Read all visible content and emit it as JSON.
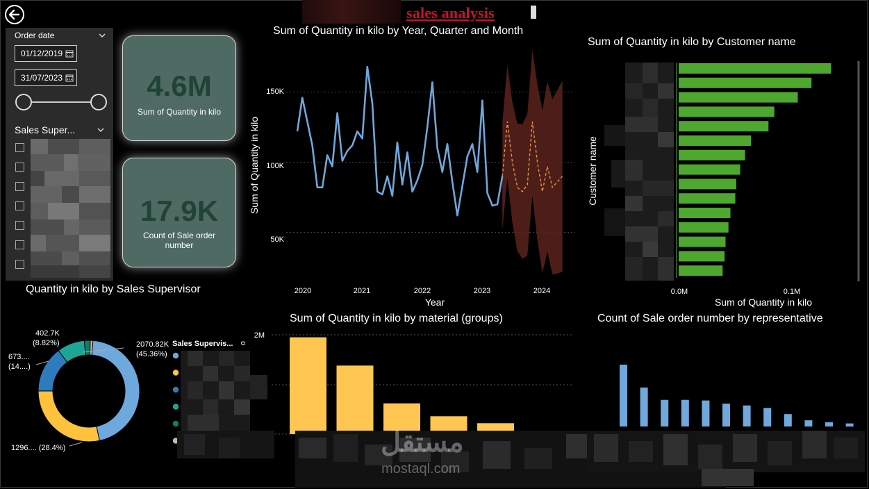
{
  "header": {
    "title": "sales analysis"
  },
  "slicer": {
    "date_label": "Order date",
    "start_date": "01/12/2019",
    "end_date": "31/07/2023",
    "supervisor_label": "Sales Super..."
  },
  "kpis": [
    {
      "value": "4.6M",
      "label": "Sum of Quantity in kilo"
    },
    {
      "value": "17.9K",
      "label": "Count of Sale order number"
    }
  ],
  "line_chart": {
    "title": "Sum of Quantity in kilo by Year, Quarter and Month",
    "xlabel": "Year",
    "ylabel": "Sum of Quantity in kilo",
    "y_ticks": [
      "150K",
      "100K",
      "50K"
    ],
    "x_ticks": [
      "2020",
      "2021",
      "2022",
      "2023",
      "2024"
    ]
  },
  "bar_chart": {
    "title": "Sum of Quantity in kilo by Customer name",
    "xlabel": "Sum of Quantity in kilo",
    "ylabel": "Customer name",
    "x_ticks": [
      "0.0M",
      "0.1M"
    ]
  },
  "donut_chart": {
    "title": "Quantity in kilo by Sales Supervisor",
    "legend_title": "Sales Supervis...",
    "labels": [
      {
        "line1": "2070.82K",
        "line2": "(45.36%)"
      },
      {
        "line1": "1296.... (28.4%)",
        "line2": ""
      },
      {
        "line1": "673....",
        "line2": "(14....)"
      },
      {
        "line1": "402.7K",
        "line2": "(8.82%)"
      }
    ],
    "colors": [
      "#6fa8dc",
      "#ffc23d",
      "#2f7bbf",
      "#1fa596",
      "#0d7f6e",
      "#c9b9a0"
    ]
  },
  "material_chart": {
    "title": "Sum of Quantity in kilo by material (groups)",
    "y_tick": "2M",
    "color": "#ffc751"
  },
  "rep_chart": {
    "title": "Count of Sale order number by representative",
    "color": "#6fa8dc"
  },
  "chart_data": [
    {
      "type": "line",
      "title": "Sum of Quantity in kilo by Year, Quarter and Month",
      "xlabel": "Year",
      "ylabel": "Sum of Quantity in kilo",
      "ylim": [
        20000,
        180000
      ],
      "series": [
        {
          "values": [
            122000,
            146000,
            129000,
            112000,
            82000,
            82000,
            105000,
            97000,
            135000,
            101000,
            108000,
            112000,
            122000,
            117000,
            168000,
            142000,
            79000,
            77000,
            90000,
            76000,
            114000,
            84000,
            107000,
            79000,
            87000,
            98000,
            125000,
            157000,
            110000,
            93000,
            113000,
            86000,
            62000,
            83000,
            104000,
            113000,
            93000,
            144000,
            78000,
            69000,
            70000,
            90000
          ]
        },
        {
          "name": "forecast",
          "values": [
            90000,
            129000,
            100000,
            82000,
            79000,
            84000,
            129000,
            100000,
            79000,
            97000,
            82000,
            86000,
            90000
          ]
        }
      ]
    },
    {
      "type": "bar",
      "title": "Sum of Quantity in kilo by Customer name",
      "xlabel": "Sum of Quantity in kilo",
      "ylabel": "Customer name",
      "xlim": [
        0,
        0.18
      ],
      "values": [
        0.156,
        0.136,
        0.122,
        0.098,
        0.092,
        0.074,
        0.068,
        0.063,
        0.059,
        0.058,
        0.053,
        0.051,
        0.048,
        0.047,
        0.045
      ]
    },
    {
      "type": "pie",
      "title": "Quantity in kilo by Sales Supervisor",
      "values": [
        45.36,
        28.4,
        14.7,
        8.82,
        1.9,
        0.82
      ]
    },
    {
      "type": "bar",
      "title": "Sum of Quantity in kilo by material (groups)",
      "ylim": [
        0,
        2000000
      ],
      "values": [
        1950000,
        1380000,
        620000,
        360000,
        220000,
        15000
      ]
    },
    {
      "type": "bar",
      "title": "Count of Sale order number by representative",
      "values": [
        1.0,
        0.63,
        0.43,
        0.43,
        0.42,
        0.37,
        0.34,
        0.3,
        0.2,
        0.1,
        0.07,
        0.05
      ]
    }
  ]
}
